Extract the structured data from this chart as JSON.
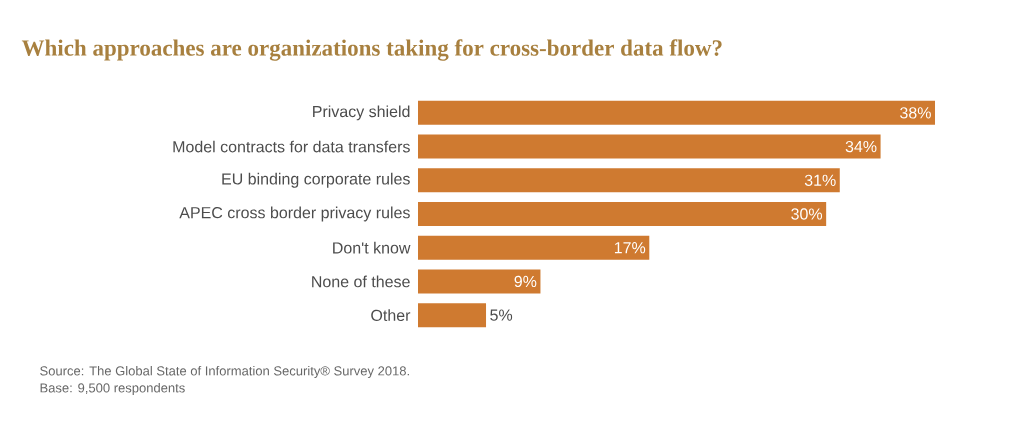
{
  "chart_data": {
    "type": "bar",
    "orientation": "horizontal",
    "title": "Which approaches are organizations taking for cross-border data flow?",
    "categories": [
      "Privacy shield",
      "Model contracts for data transfers",
      "EU binding corporate rules",
      "APEC cross border privacy rules",
      "Don't know",
      "None of these",
      "Other"
    ],
    "values": [
      38,
      34,
      31,
      30,
      17,
      9,
      5
    ],
    "value_labels": [
      "38%",
      "34%",
      "31%",
      "30%",
      "17%",
      "9%",
      "5%"
    ],
    "color": "#cf7a30",
    "annotations": [
      "Source: The Global State of Information Security® Survey 2018.",
      "Base: 9,500 respondents"
    ]
  }
}
